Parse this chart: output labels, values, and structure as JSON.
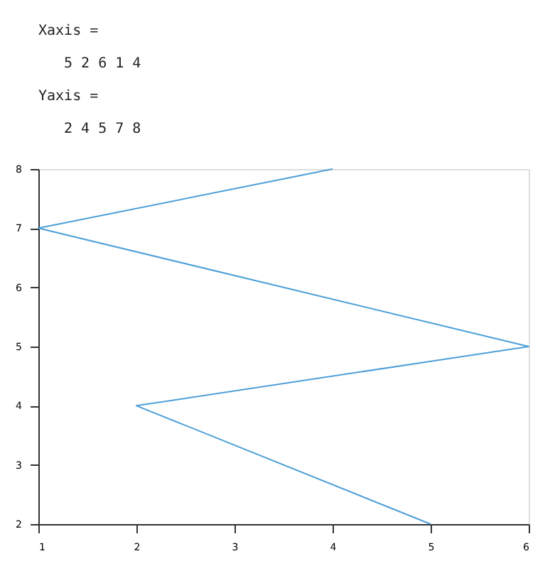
{
  "chart_data": {
    "type": "line",
    "x": [
      5,
      2,
      6,
      1,
      4
    ],
    "series": [
      {
        "color": "#4d9fd8",
        "values": [
          2,
          4,
          5,
          7,
          8
        ]
      }
    ],
    "xlim": [
      1,
      6
    ],
    "xticks": [
      1,
      2,
      3,
      4,
      5,
      6
    ],
    "ylim": [
      2,
      8
    ],
    "yticks": [
      2,
      3,
      4,
      5,
      6,
      7,
      8
    ],
    "grid": false,
    "marker": "none",
    "line_style": "solid",
    "annotations": [
      "Xaxis =",
      "5   2   6   1   4",
      "Yaxis =",
      "2   4   5   7   8"
    ]
  }
}
